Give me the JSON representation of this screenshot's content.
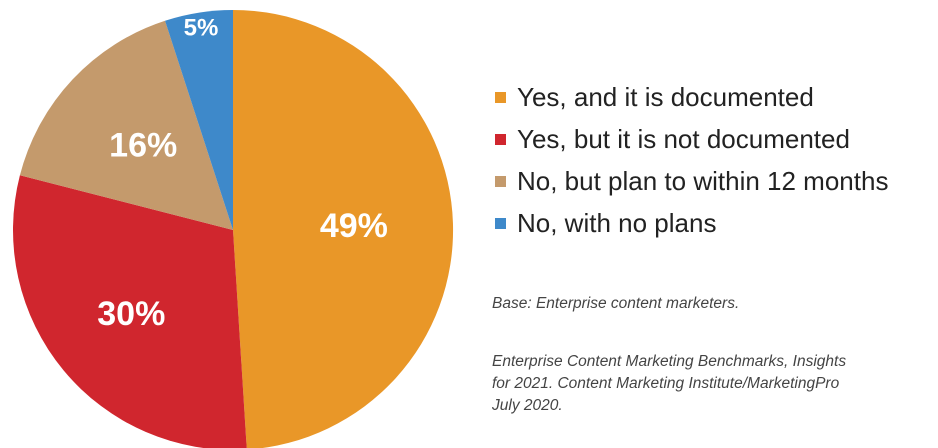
{
  "chart_data": {
    "type": "pie",
    "slices": [
      {
        "label": "Yes, and it is documented",
        "value": 49,
        "value_label": "49%",
        "color": "#E99728"
      },
      {
        "label": "Yes, but it is not documented",
        "value": 30,
        "value_label": "30%",
        "color": "#D0262E"
      },
      {
        "label": "No, but plan to within 12 months",
        "value": 16,
        "value_label": "16%",
        "color": "#C49A6C"
      },
      {
        "label": "No, with no plans",
        "value": 5,
        "value_label": "5%",
        "color": "#3E89CA"
      }
    ],
    "legend_position": "right"
  },
  "notes": {
    "base": "Base: Enterprise content marketers.",
    "source_lines": [
      "Enterprise Content Marketing Benchmarks, Insights",
      "for 2021. Content Marketing Institute/MarketingPro",
      "July 2020."
    ]
  }
}
